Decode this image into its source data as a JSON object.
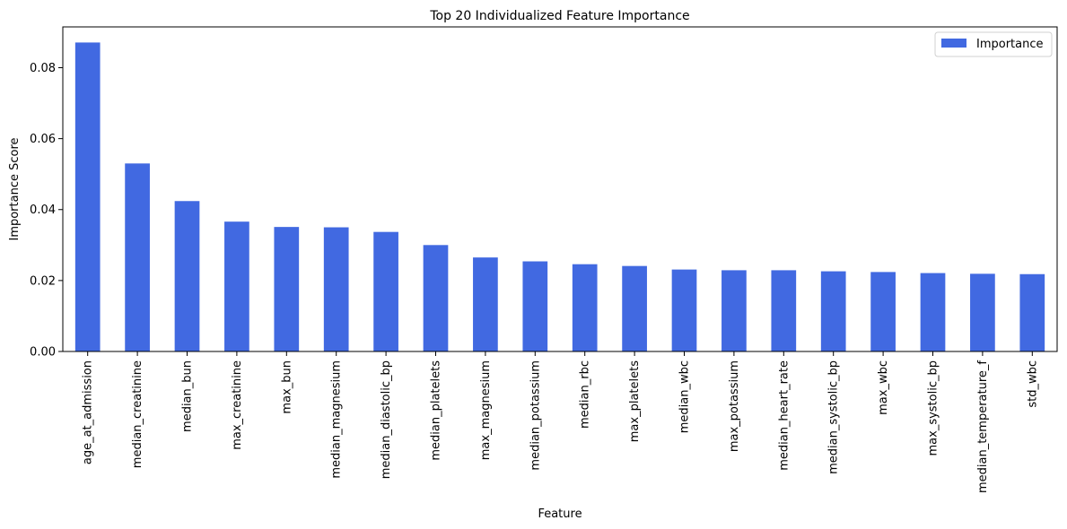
{
  "chart_data": {
    "type": "bar",
    "title": "Top 20 Individualized Feature Importance",
    "xlabel": "Feature",
    "ylabel": "Importance Score",
    "categories": [
      "age_at_admission",
      "median_creatinine",
      "median_bun",
      "max_creatinine",
      "max_bun",
      "median_magnesium",
      "median_diastolic_bp",
      "median_platelets",
      "max_magnesium",
      "median_potassium",
      "median_rbc",
      "max_platelets",
      "median_wbc",
      "max_potassium",
      "median_heart_rate",
      "median_systolic_bp",
      "max_wbc",
      "max_systolic_bp",
      "median_temperature_f",
      "std_wbc"
    ],
    "series": [
      {
        "name": "Importance",
        "color": "#4169e1",
        "values": [
          0.0871,
          0.053,
          0.0424,
          0.0366,
          0.0351,
          0.035,
          0.0337,
          0.03,
          0.0265,
          0.0254,
          0.0246,
          0.0241,
          0.0231,
          0.0229,
          0.0229,
          0.0226,
          0.0224,
          0.0221,
          0.0219,
          0.0218
        ]
      }
    ],
    "yticks": [
      0.0,
      0.02,
      0.04,
      0.06,
      0.08
    ],
    "ytick_labels": [
      "0.00",
      "0.02",
      "0.04",
      "0.06",
      "0.08"
    ],
    "ylim": [
      0,
      0.0915
    ],
    "legend": {
      "position": "top-right",
      "label": "Importance"
    },
    "grid": false
  }
}
